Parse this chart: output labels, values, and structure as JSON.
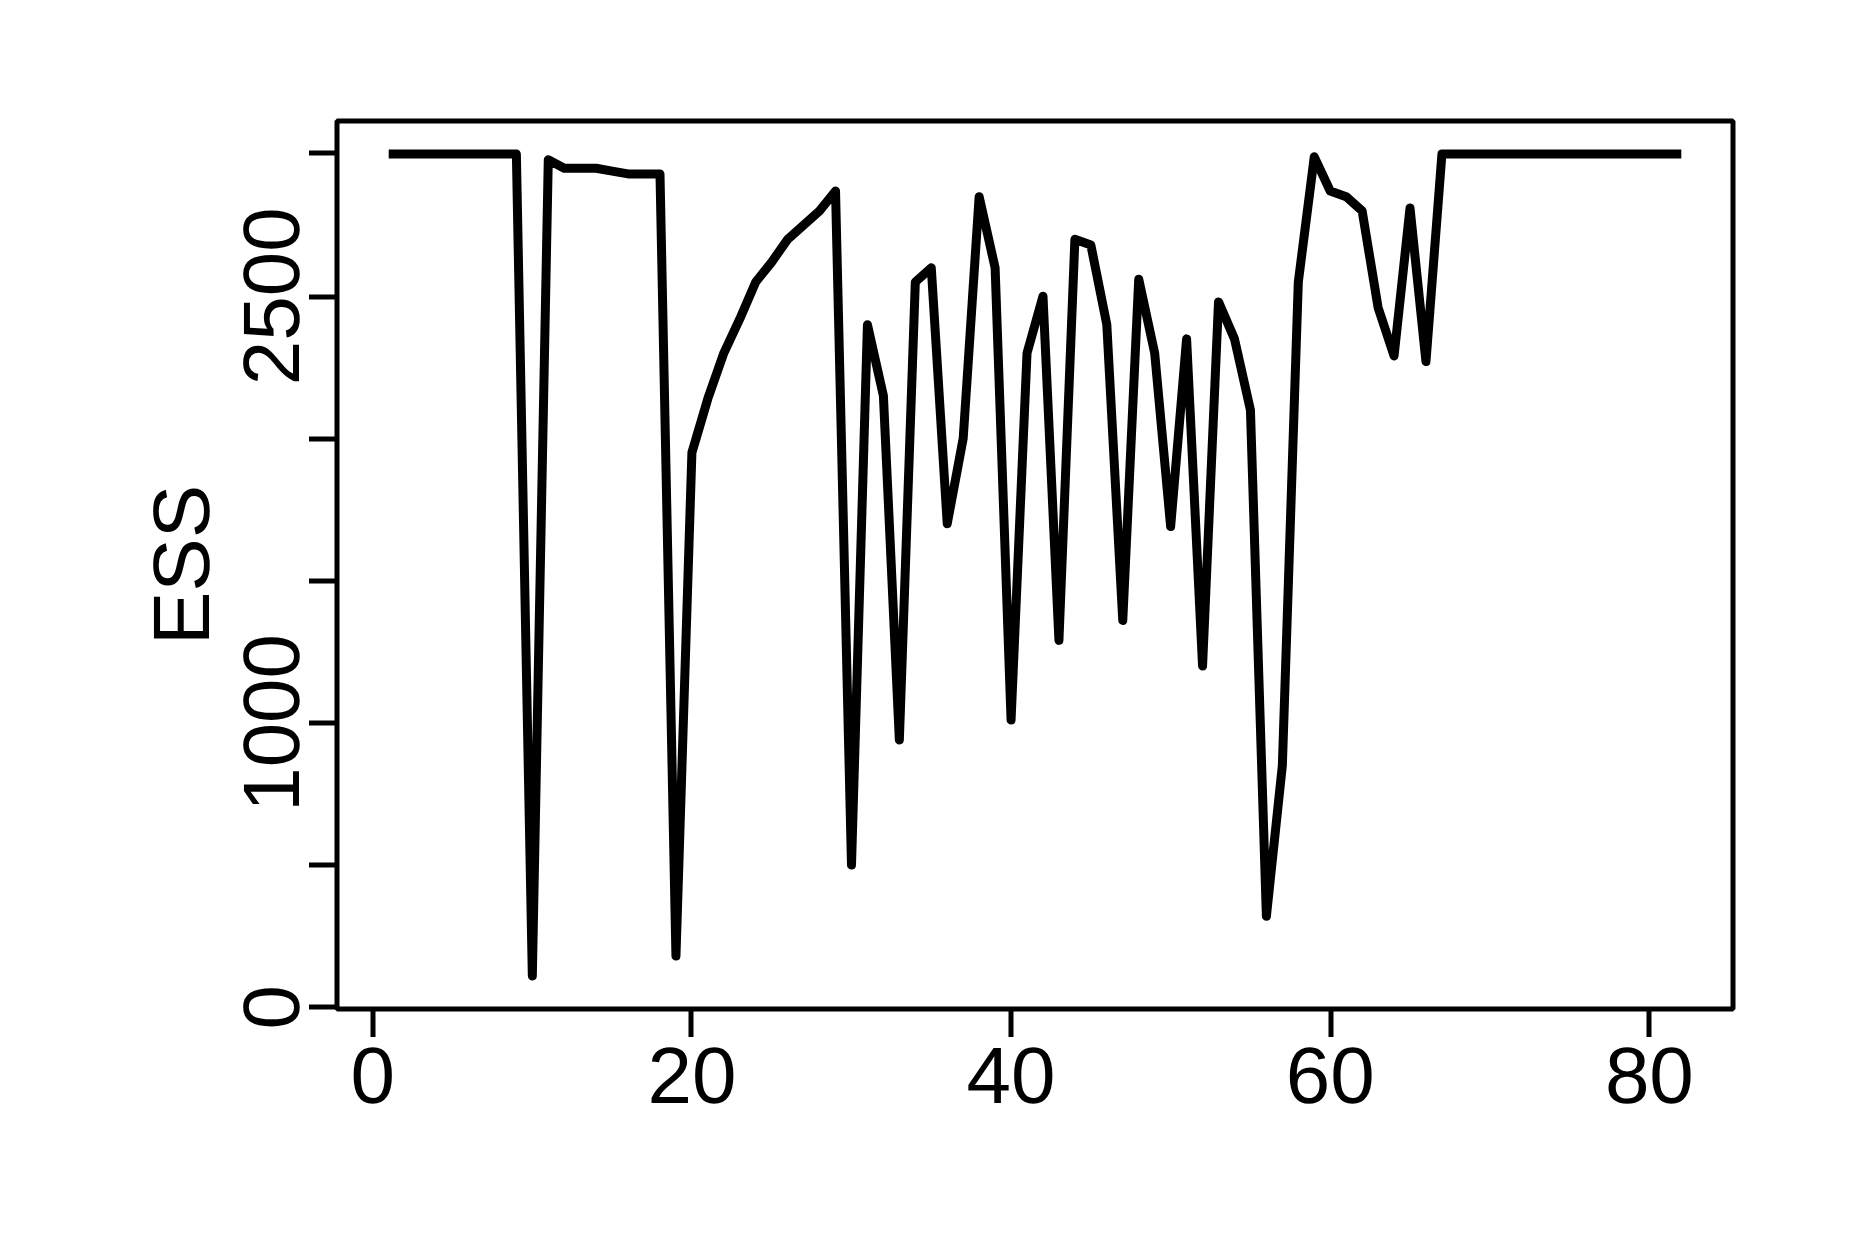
{
  "chart_data": {
    "type": "line",
    "ylabel": "ESS",
    "x": [
      1,
      2,
      3,
      4,
      5,
      6,
      7,
      8,
      9,
      10,
      11,
      12,
      13,
      14,
      15,
      16,
      17,
      18,
      19,
      20,
      21,
      22,
      23,
      24,
      25,
      26,
      27,
      28,
      29,
      30,
      31,
      32,
      33,
      34,
      35,
      36,
      37,
      38,
      39,
      40,
      41,
      42,
      43,
      44,
      45,
      46,
      47,
      48,
      49,
      50,
      51,
      52,
      53,
      54,
      55,
      56,
      57,
      58,
      59,
      60,
      61,
      62,
      63,
      64,
      65,
      66,
      67,
      68,
      69,
      70,
      71,
      72,
      73,
      74,
      75,
      76,
      77,
      78,
      79,
      80,
      81,
      82
    ],
    "series": [
      {
        "color": "#000000",
        "values": [
          3000,
          3000,
          3000,
          3000,
          3000,
          3000,
          3000,
          3000,
          3000,
          110,
          2980,
          2950,
          2950,
          2950,
          2940,
          2930,
          2930,
          2930,
          180,
          1950,
          2140,
          2300,
          2420,
          2550,
          2620,
          2700,
          2750,
          2800,
          2870,
          500,
          2400,
          2150,
          940,
          2550,
          2600,
          1700,
          2000,
          2850,
          2600,
          1010,
          2300,
          2500,
          1290,
          2700,
          2680,
          2400,
          1360,
          2560,
          2300,
          1690,
          2350,
          1200,
          2480,
          2350,
          2100,
          320,
          850,
          2550,
          2990,
          2870,
          2850,
          2800,
          2460,
          2290,
          2810,
          2270,
          3000,
          3000,
          3000,
          3000,
          3000,
          3000,
          3000,
          3000,
          3000,
          3000,
          3000,
          3000,
          3000,
          3000,
          3000,
          3000
        ]
      }
    ],
    "xlim": [
      -2.24,
      85.24
    ],
    "ylim": [
      -6,
      3116
    ],
    "xticks": [
      0,
      20,
      40,
      60,
      80
    ],
    "yticks": [
      0,
      {
        "value": 500,
        "label": null
      },
      1000,
      {
        "value": 1500,
        "label": null
      },
      {
        "value": 2000,
        "label": null
      },
      2500,
      {
        "value": 3000,
        "label": null
      }
    ],
    "grid": false,
    "line_style": "solid",
    "marker": "none"
  }
}
